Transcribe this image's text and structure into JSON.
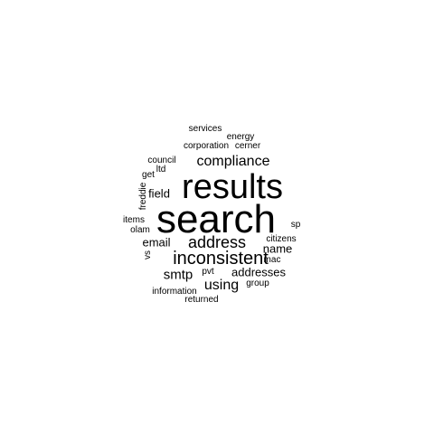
{
  "word_cloud": {
    "words": {
      "search": "search",
      "results": "results",
      "inconsistent": "inconsistent",
      "address": "address",
      "compliance": "compliance",
      "using": "using",
      "smtp": "smtp",
      "email": "email",
      "field": "field",
      "name": "name",
      "addresses": "addresses",
      "services": "services",
      "energy": "energy",
      "corporation": "corporation",
      "cerner": "cerner",
      "council": "council",
      "ltd": "ltd",
      "get": "get",
      "freddie": "freddie",
      "items": "items",
      "olam": "olam",
      "sp": "sp",
      "citizens": "citizens",
      "vs": "vs",
      "mac": "mac",
      "pvt": "pvt",
      "group": "group",
      "information": "information",
      "returned": "returned"
    },
    "text_color": "#000000",
    "background_color": "#ffffff"
  }
}
